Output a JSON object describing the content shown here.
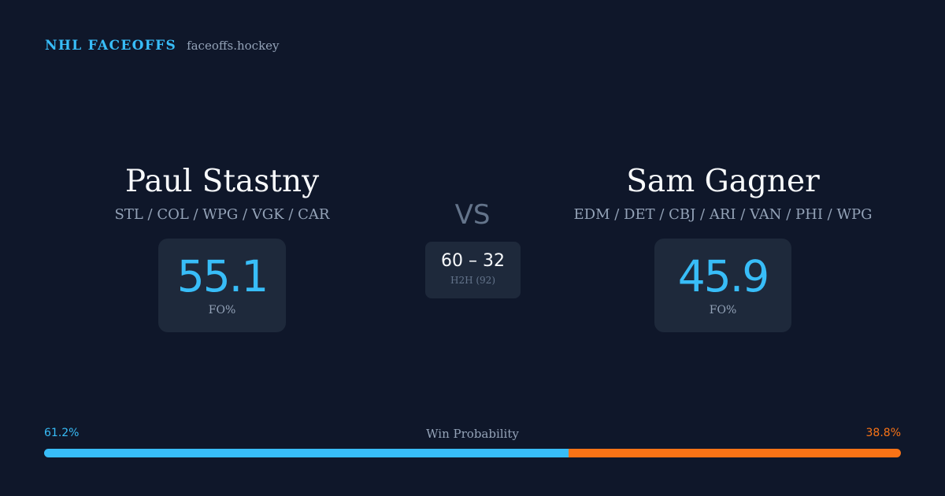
{
  "brand": {
    "name": "NHL FACEOFFS",
    "url": "faceoffs.hockey"
  },
  "player_left": {
    "name": "Paul Stastny",
    "teams": "STL / COL / WPG / VGK / CAR",
    "fo_pct": "55.1",
    "fo_label": "FO%"
  },
  "player_right": {
    "name": "Sam Gagner",
    "teams": "EDM / DET / CBJ / ARI / VAN / PHI / WPG",
    "fo_pct": "45.9",
    "fo_label": "FO%"
  },
  "versus": "VS",
  "head_to_head": {
    "score": "60 – 32",
    "label": "H2H (92)"
  },
  "win_probability": {
    "title": "Win Probability",
    "left_label": "61.2%",
    "right_label": "38.8%",
    "left_value": 61.2,
    "right_value": 38.8
  },
  "colors": {
    "background": "#0f172a",
    "card": "#1e293b",
    "accent_blue": "#38bdf8",
    "accent_orange": "#f97316"
  }
}
